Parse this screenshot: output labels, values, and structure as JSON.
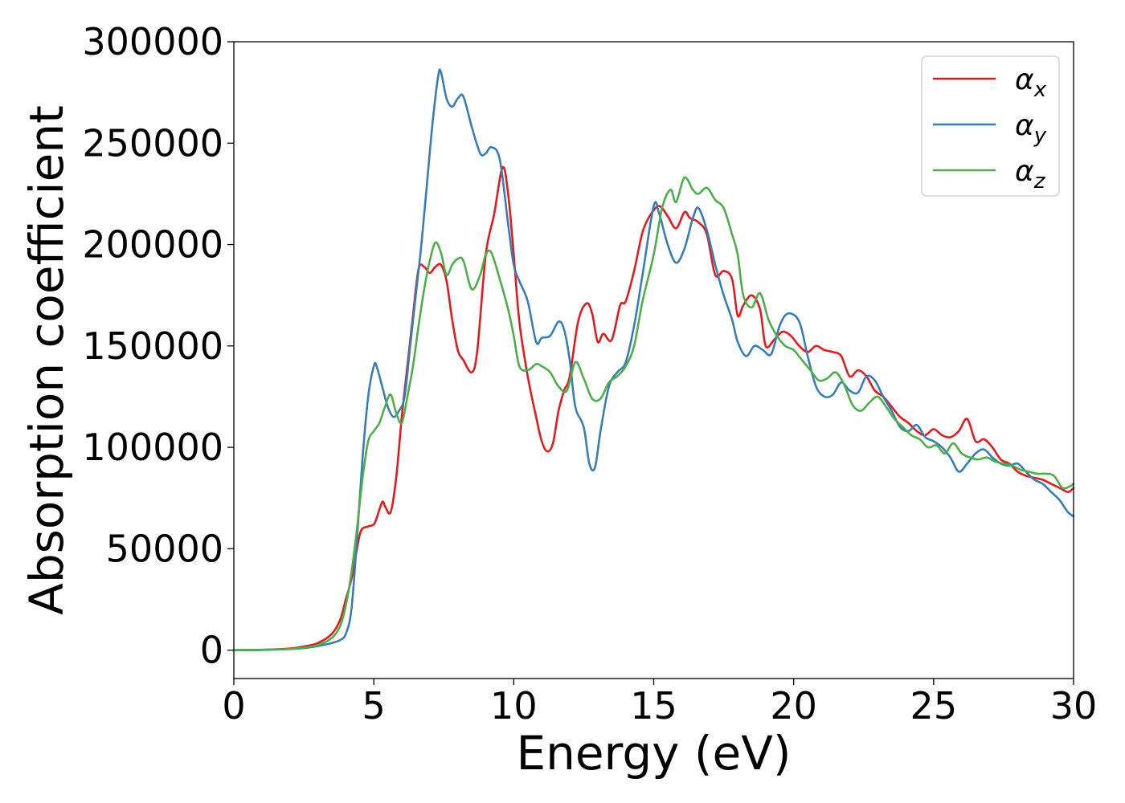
{
  "chart_data": {
    "type": "line",
    "title": "",
    "xlabel": "Energy (eV)",
    "ylabel": "Absorption coefficient",
    "xlim": [
      0,
      30
    ],
    "ylim": [
      -14000,
      300000
    ],
    "x_ticks": [
      0,
      5,
      10,
      15,
      20,
      25,
      30
    ],
    "x_tick_labels": [
      "0",
      "5",
      "10",
      "15",
      "20",
      "25",
      "30"
    ],
    "y_ticks": [
      0,
      50000,
      100000,
      150000,
      200000,
      250000,
      300000
    ],
    "y_tick_labels": [
      "0",
      "50000",
      "100000",
      "150000",
      "200000",
      "250000",
      "300000"
    ],
    "grid": false,
    "legend_position": "top-right",
    "series": [
      {
        "name": "α",
        "subscript": "x",
        "color": "#e41a1c",
        "x": [
          0,
          1,
          2,
          2.5,
          3,
          3.5,
          3.8,
          4.0,
          4.2,
          4.4,
          4.5,
          4.6,
          4.8,
          5.0,
          5.1,
          5.3,
          5.4,
          5.6,
          5.8,
          6.0,
          6.2,
          6.4,
          6.6,
          6.8,
          7.0,
          7.2,
          7.4,
          7.6,
          7.8,
          8.0,
          8.2,
          8.5,
          8.7,
          9.0,
          9.3,
          9.6,
          9.8,
          10.0,
          10.2,
          10.5,
          10.8,
          11.0,
          11.2,
          11.4,
          11.6,
          11.8,
          12.0,
          12.3,
          12.6,
          12.8,
          13.0,
          13.2,
          13.5,
          13.8,
          14.0,
          14.3,
          14.6,
          14.9,
          15.2,
          15.5,
          15.8,
          16.1,
          16.3,
          16.6,
          16.9,
          17.2,
          17.5,
          17.8,
          18.0,
          18.2,
          18.5,
          18.8,
          19.0,
          19.3,
          19.6,
          19.9,
          20.2,
          20.5,
          20.8,
          21.1,
          21.4,
          21.7,
          22.0,
          22.3,
          22.6,
          22.9,
          23.2,
          23.5,
          23.8,
          24.1,
          24.4,
          24.7,
          25.0,
          25.3,
          25.6,
          25.9,
          26.2,
          26.5,
          26.8,
          27.1,
          27.4,
          27.7,
          28.0,
          28.3,
          28.6,
          28.9,
          29.2,
          29.5,
          29.8,
          30.0
        ],
        "values": [
          0,
          200,
          800,
          1800,
          3500,
          8000,
          15000,
          25000,
          35000,
          50000,
          57000,
          60000,
          61000,
          62000,
          65000,
          73000,
          71000,
          68000,
          85000,
          115000,
          140000,
          165000,
          188000,
          189000,
          186000,
          189000,
          190000,
          182000,
          163000,
          148000,
          143000,
          137000,
          148000,
          195000,
          215000,
          238000,
          225000,
          195000,
          162000,
          135000,
          115000,
          103000,
          98000,
          102000,
          118000,
          128000,
          135000,
          162000,
          171000,
          166000,
          152000,
          156000,
          153000,
          170000,
          172000,
          187000,
          206000,
          215000,
          219000,
          214000,
          208000,
          216000,
          213000,
          211000,
          205000,
          185000,
          187000,
          183000,
          165000,
          170000,
          175000,
          168000,
          150000,
          153000,
          157000,
          155000,
          150000,
          147000,
          150000,
          148000,
          147000,
          145000,
          135000,
          138000,
          135000,
          128000,
          125000,
          120000,
          115000,
          112000,
          108000,
          106000,
          109000,
          106000,
          105000,
          108000,
          114000,
          103000,
          104000,
          100000,
          94000,
          92000,
          88000,
          86000,
          85000,
          84000,
          82000,
          80000,
          78000,
          80000
        ]
      },
      {
        "name": "α",
        "subscript": "y",
        "color": "#377eb8",
        "x": [
          0,
          1,
          2,
          2.5,
          3,
          3.5,
          3.8,
          4.0,
          4.2,
          4.4,
          4.6,
          4.8,
          5.0,
          5.1,
          5.3,
          5.5,
          5.7,
          5.9,
          6.1,
          6.3,
          6.5,
          6.7,
          6.9,
          7.1,
          7.3,
          7.4,
          7.6,
          7.8,
          8.0,
          8.2,
          8.5,
          8.8,
          9.0,
          9.2,
          9.5,
          9.8,
          10.0,
          10.2,
          10.5,
          10.8,
          11.0,
          11.3,
          11.6,
          11.8,
          12.0,
          12.2,
          12.5,
          12.7,
          12.9,
          13.1,
          13.4,
          13.7,
          14.0,
          14.3,
          14.6,
          15.0,
          15.2,
          15.5,
          15.8,
          16.1,
          16.4,
          16.6,
          16.9,
          17.2,
          17.5,
          17.8,
          18.0,
          18.3,
          18.6,
          18.9,
          19.2,
          19.5,
          19.8,
          20.2,
          20.5,
          20.8,
          21.1,
          21.4,
          21.7,
          22.0,
          22.3,
          22.6,
          22.9,
          23.2,
          23.5,
          23.8,
          24.1,
          24.4,
          24.7,
          25.0,
          25.3,
          25.6,
          25.9,
          26.2,
          26.5,
          26.8,
          27.1,
          27.4,
          27.7,
          28.0,
          28.3,
          28.6,
          28.9,
          29.2,
          29.5,
          29.8,
          30.0
        ],
        "values": [
          0,
          100,
          500,
          1000,
          2000,
          3500,
          5000,
          8000,
          20000,
          55000,
          95000,
          125000,
          140000,
          140000,
          130000,
          120000,
          115000,
          118000,
          125000,
          150000,
          175000,
          200000,
          230000,
          260000,
          283000,
          285000,
          272000,
          268000,
          272000,
          273000,
          258000,
          245000,
          245000,
          248000,
          242000,
          210000,
          190000,
          182000,
          172000,
          152000,
          154000,
          155000,
          162000,
          158000,
          143000,
          120000,
          110000,
          92000,
          90000,
          108000,
          130000,
          137000,
          142000,
          160000,
          185000,
          219000,
          215000,
          200000,
          191000,
          198000,
          213000,
          218000,
          207000,
          190000,
          175000,
          163000,
          152000,
          145000,
          150000,
          148000,
          146000,
          160000,
          166000,
          162000,
          145000,
          130000,
          125000,
          126000,
          132000,
          128000,
          127000,
          135000,
          133000,
          125000,
          118000,
          110000,
          108000,
          111000,
          105000,
          103000,
          100000,
          95000,
          88000,
          92000,
          97000,
          99000,
          95000,
          92000,
          91000,
          92000,
          88000,
          84000,
          82000,
          78000,
          74000,
          68000,
          66000
        ]
      },
      {
        "name": "α",
        "subscript": "z",
        "color": "#4daf4a",
        "x": [
          0,
          1,
          2,
          2.5,
          3,
          3.5,
          3.8,
          4.0,
          4.2,
          4.4,
          4.6,
          4.8,
          5.0,
          5.2,
          5.4,
          5.6,
          5.8,
          6.0,
          6.2,
          6.4,
          6.6,
          6.8,
          7.0,
          7.2,
          7.4,
          7.6,
          7.8,
          8.0,
          8.2,
          8.5,
          8.8,
          9.0,
          9.2,
          9.5,
          9.8,
          10.0,
          10.2,
          10.5,
          10.8,
          11.0,
          11.3,
          11.6,
          11.9,
          12.2,
          12.5,
          12.8,
          13.1,
          13.4,
          13.7,
          14.0,
          14.3,
          14.6,
          15.0,
          15.3,
          15.6,
          15.8,
          16.1,
          16.4,
          16.6,
          16.9,
          17.2,
          17.5,
          17.8,
          18.0,
          18.2,
          18.5,
          18.8,
          19.1,
          19.4,
          19.7,
          20.0,
          20.3,
          20.6,
          20.9,
          21.2,
          21.5,
          21.8,
          22.1,
          22.4,
          22.7,
          23.0,
          23.3,
          23.6,
          23.9,
          24.2,
          24.5,
          24.8,
          25.1,
          25.4,
          25.7,
          26.0,
          26.3,
          26.6,
          26.9,
          27.2,
          27.5,
          27.8,
          28.1,
          28.4,
          28.7,
          29.0,
          29.3,
          29.6,
          29.9,
          30.0
        ],
        "values": [
          0,
          150,
          600,
          1200,
          2500,
          6000,
          12000,
          22000,
          38000,
          60000,
          85000,
          103000,
          108000,
          112000,
          120000,
          126000,
          117000,
          112000,
          125000,
          140000,
          160000,
          178000,
          192000,
          201000,
          196000,
          185000,
          190000,
          193000,
          192000,
          178000,
          185000,
          195000,
          196000,
          183000,
          168000,
          155000,
          140000,
          138000,
          141000,
          140000,
          137000,
          130000,
          128000,
          142000,
          134000,
          124000,
          124000,
          132000,
          135000,
          140000,
          150000,
          172000,
          195000,
          218000,
          227000,
          221000,
          233000,
          227000,
          225000,
          228000,
          222000,
          218000,
          205000,
          195000,
          175000,
          169000,
          176000,
          163000,
          155000,
          150000,
          148000,
          143000,
          138000,
          133000,
          134000,
          137000,
          131000,
          121000,
          118000,
          122000,
          125000,
          120000,
          114000,
          110000,
          106000,
          104000,
          100000,
          101000,
          97000,
          102000,
          97000,
          95000,
          94000,
          95000,
          93000,
          92000,
          91000,
          89000,
          88000,
          87000,
          87000,
          86000,
          80000,
          81000,
          82000
        ]
      }
    ]
  }
}
